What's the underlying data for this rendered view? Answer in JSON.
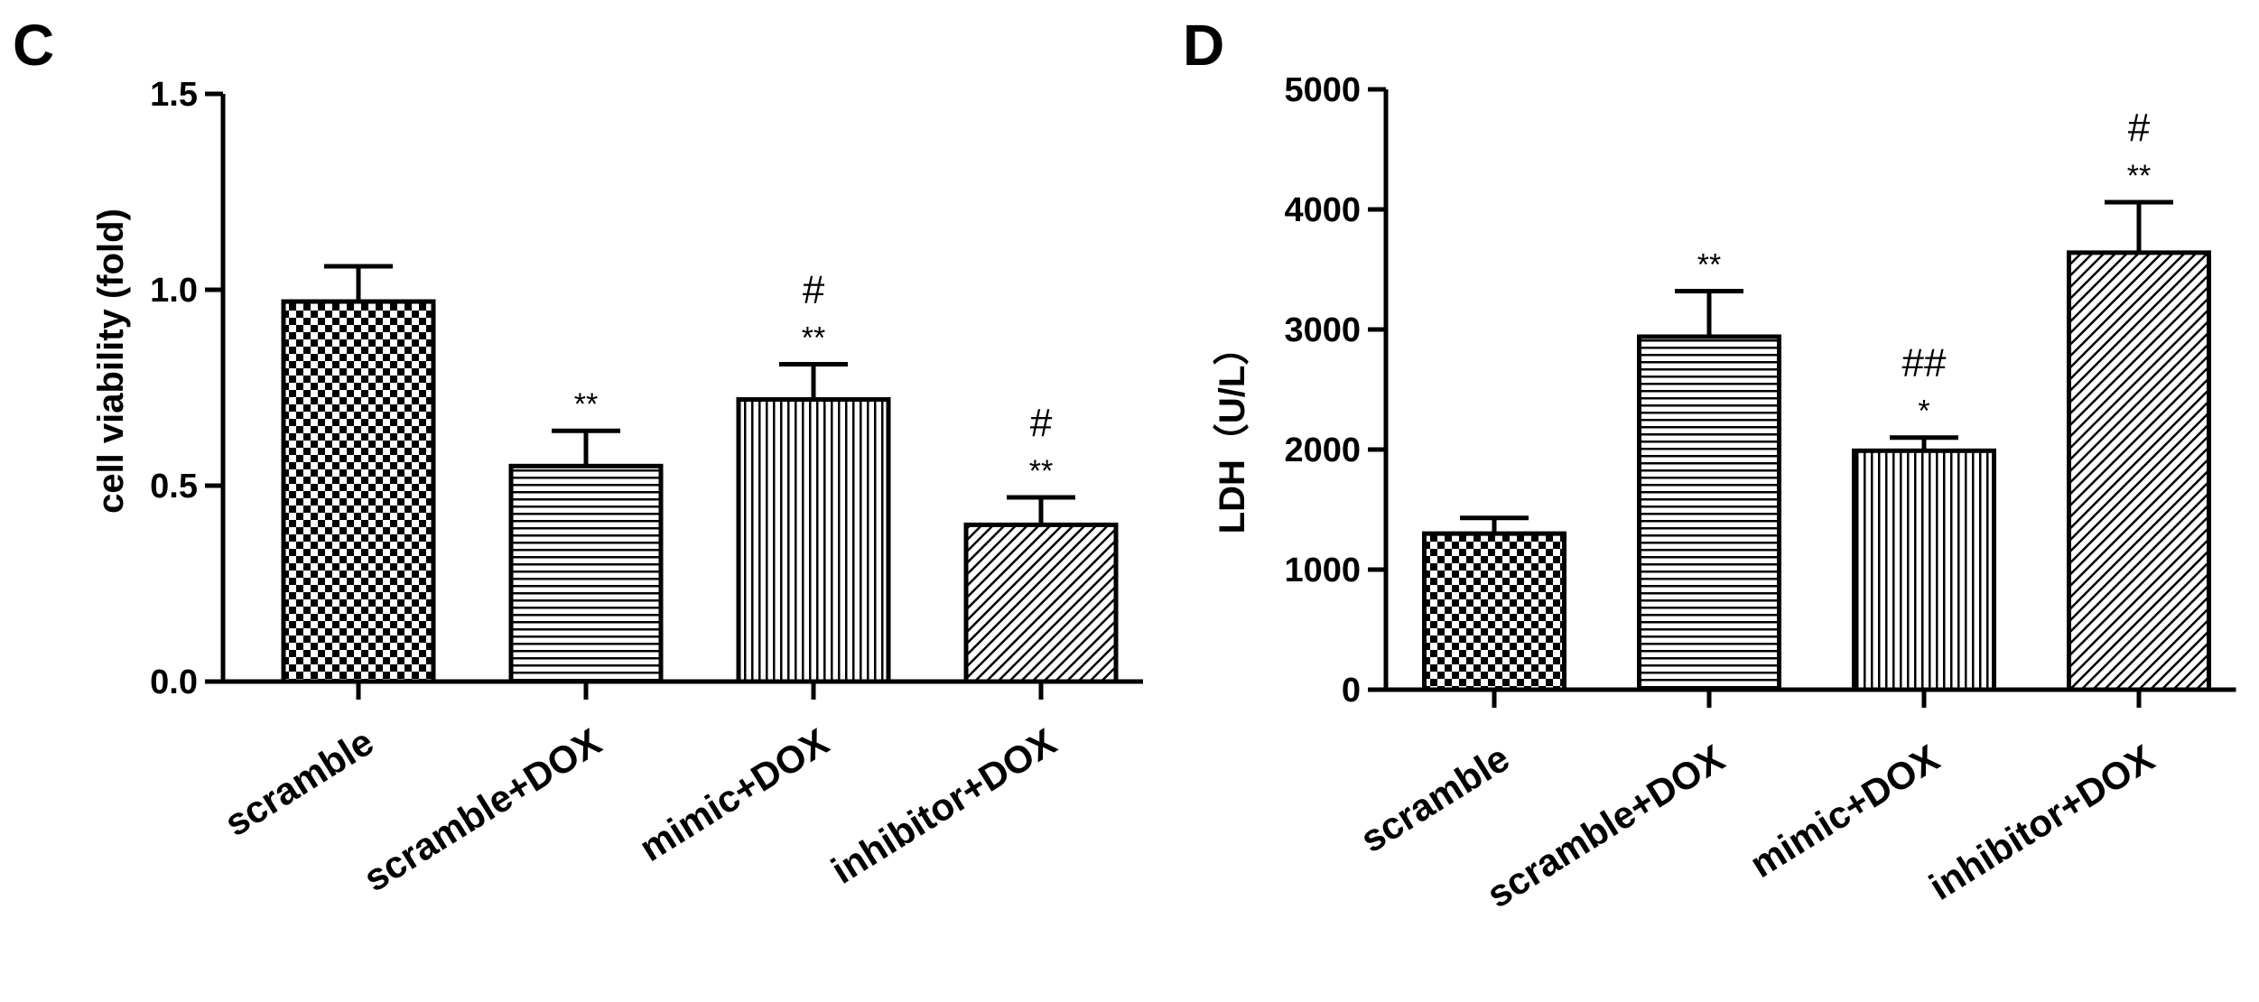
{
  "chart_data": [
    {
      "panel": "C",
      "type": "bar",
      "title": "",
      "xlabel": "",
      "ylabel": "cell viability (fold)",
      "ylim": [
        0,
        1.5
      ],
      "yticks": [
        "0.0",
        "0.5",
        "1.0",
        "1.5"
      ],
      "categories": [
        "scramble",
        "scramble+DOX",
        "mimic+DOX",
        "inhibitor+DOX"
      ],
      "values": [
        0.97,
        0.55,
        0.72,
        0.4
      ],
      "errors": [
        0.09,
        0.09,
        0.09,
        0.07
      ],
      "patterns": [
        "checker",
        "hstripe",
        "vstripe",
        "diag"
      ],
      "annotations": [
        {
          "stars": "",
          "hash": ""
        },
        {
          "stars": "**",
          "hash": ""
        },
        {
          "stars": "**",
          "hash": "#"
        },
        {
          "stars": "**",
          "hash": "#"
        }
      ],
      "grid": false,
      "legend": "none"
    },
    {
      "panel": "D",
      "type": "bar",
      "title": "",
      "xlabel": "",
      "ylabel": "LDH（U/L）",
      "ylim": [
        0,
        5000
      ],
      "yticks": [
        "0",
        "1000",
        "2000",
        "3000",
        "4000",
        "5000"
      ],
      "categories": [
        "scramble",
        "scramble+DOX",
        "mimic+DOX",
        "inhibitor+DOX"
      ],
      "values": [
        1300,
        2940,
        1990,
        3640
      ],
      "errors": [
        130,
        380,
        110,
        420
      ],
      "patterns": [
        "checker",
        "hstripe",
        "vstripe",
        "diag"
      ],
      "annotations": [
        {
          "stars": "",
          "hash": ""
        },
        {
          "stars": "**",
          "hash": ""
        },
        {
          "stars": "*",
          "hash": "##"
        },
        {
          "stars": "**",
          "hash": "#"
        }
      ],
      "grid": false,
      "legend": "none"
    }
  ]
}
